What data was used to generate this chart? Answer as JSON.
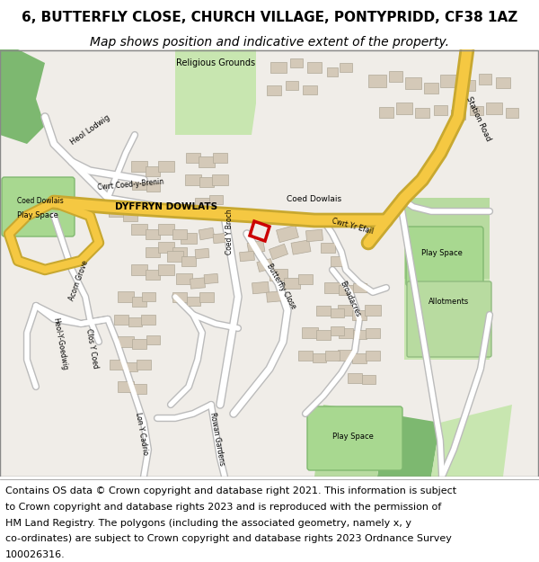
{
  "title_line1": "6, BUTTERFLY CLOSE, CHURCH VILLAGE, PONTYPRIDD, CF38 1AZ",
  "title_line2": "Map shows position and indicative extent of the property.",
  "footer_lines": [
    "Contains OS data © Crown copyright and database right 2021. This information is subject",
    "to Crown copyright and database rights 2023 and is reproduced with the permission of",
    "HM Land Registry. The polygons (including the associated geometry, namely x, y",
    "co-ordinates) are subject to Crown copyright and database rights 2023 Ordnance Survey",
    "100026316."
  ],
  "title_fontsize": 11,
  "subtitle_fontsize": 10,
  "footer_fontsize": 8,
  "fig_width": 6.0,
  "fig_height": 6.25,
  "map_bg_color": "#f0ede8",
  "road_color_main": "#f5c842",
  "road_color_minor": "#ffffff",
  "building_color": "#d4c9b8",
  "green_color": "#7db870",
  "highlight_outline": "#cc0000",
  "title_bg": "#ffffff",
  "footer_bg": "#ffffff"
}
